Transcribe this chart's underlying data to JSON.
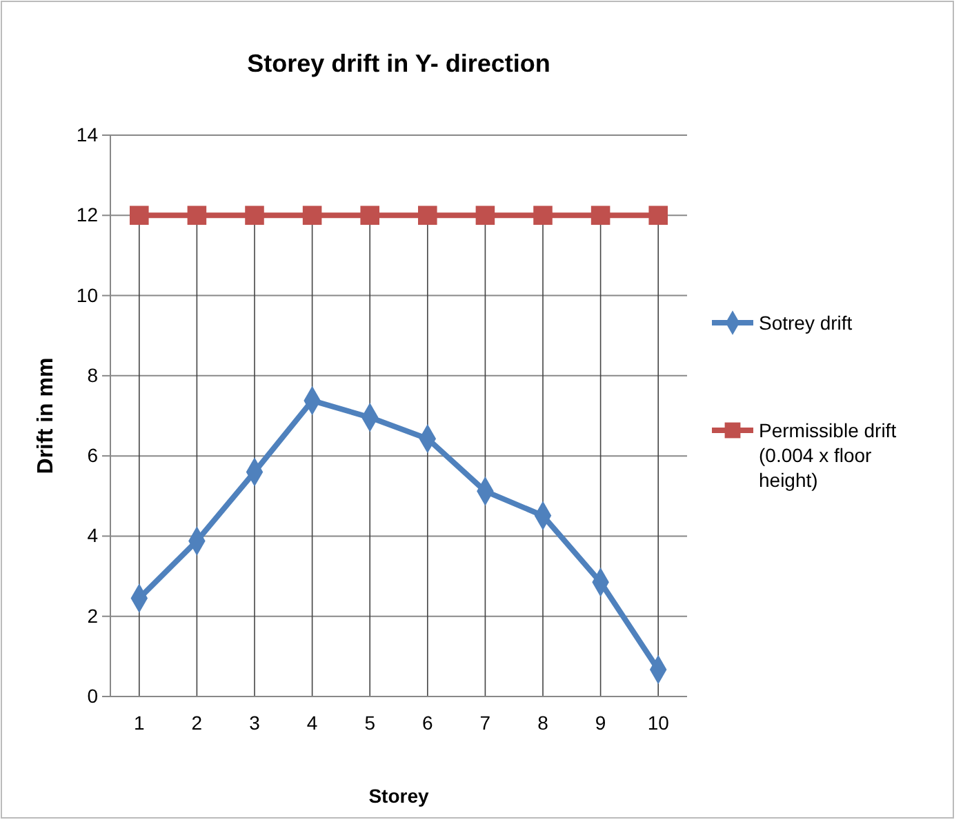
{
  "chart_data": {
    "type": "line",
    "title": "Storey drift in Y- direction",
    "xlabel": "Storey",
    "ylabel": "Drift in mm",
    "categories": [
      "1",
      "2",
      "3",
      "4",
      "5",
      "6",
      "7",
      "8",
      "9",
      "10"
    ],
    "series": [
      {
        "name": "Sotrey drift",
        "color": "#4f81bd",
        "marker": "diamond",
        "values": [
          2.45,
          3.88,
          5.6,
          7.38,
          6.96,
          6.43,
          5.12,
          4.51,
          2.85,
          0.67
        ]
      },
      {
        "name": "Permissible drift (0.004 x floor height)",
        "color": "#c0504d",
        "marker": "square",
        "values": [
          12,
          12,
          12,
          12,
          12,
          12,
          12,
          12,
          12,
          12
        ]
      }
    ],
    "ylim": [
      0,
      14
    ],
    "yticks": [
      0,
      2,
      4,
      6,
      8,
      10,
      12,
      14
    ],
    "grid": true,
    "legend": "right",
    "line_style": "solid"
  }
}
